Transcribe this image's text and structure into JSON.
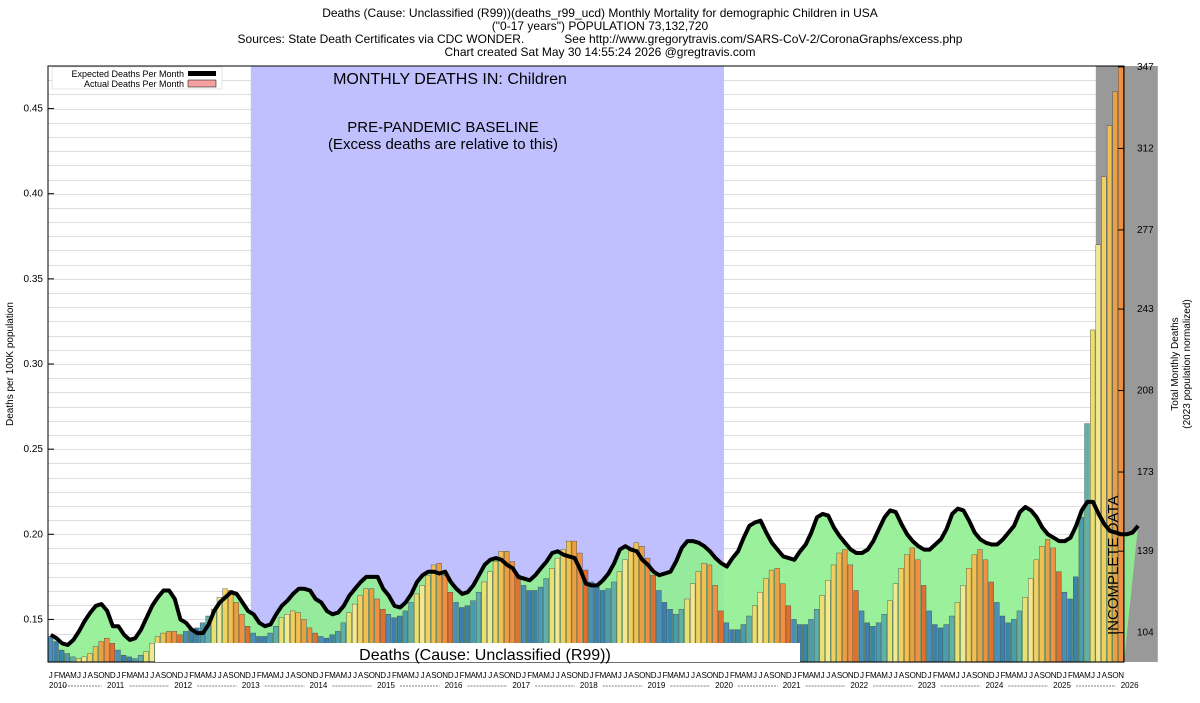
{
  "header": {
    "line1": "Deaths (Cause: Unclassified (R99))(deaths_r99_ucd) Monthly Mortality for demographic Children in USA",
    "line2": "(\"0-17 years\") POPULATION 73,132,720",
    "line3": "Sources: State Death Certificates via CDC WONDER.            See http://www.gregorytravis.com/SARS-CoV-2/CoronaGraphs/excess.php",
    "line4": "Chart created Sat May 30 14:55:24 2026 @gregtravis.com"
  },
  "annotations": {
    "monthly_title": "MONTHLY DEATHS IN: Children",
    "baseline_title": "PRE-PANDEMIC BASELINE",
    "baseline_sub": "(Excess deaths are relative to this)",
    "cause_label": "Deaths (Cause: Unclassified (R99))",
    "incomplete": "INCOMPLETE DATA"
  },
  "legend": {
    "expected": "Expected Deaths Per Month",
    "actual": "Actual Deaths Per Month",
    "placement": "top-left"
  },
  "colors": {
    "baseline_band": "#c0c0ff",
    "incomplete_band": "#999999",
    "excess_fill": "#90ee90",
    "expected_line": "#000000",
    "actual_legend": "#f4a0a0"
  },
  "chart_data": {
    "type": "bar",
    "title": "",
    "ylabel": "Deaths per 100K population",
    "y2label_1": "Total Monthly Deaths",
    "y2label_2": "(2023 population normalized)",
    "ylim": [
      0.125,
      0.475
    ],
    "y2lim": [
      91.4,
      347.4
    ],
    "yticks": [
      0.15,
      0.2,
      0.25,
      0.3,
      0.35,
      0.4,
      0.45
    ],
    "yticks_labels": [
      "0.15",
      "0.20",
      "0.25",
      "0.30",
      "0.35",
      "0.40",
      "0.45"
    ],
    "y2ticks": [
      104,
      139,
      173,
      208,
      243,
      277,
      312,
      347
    ],
    "y2ticks_labels": [
      "104",
      "139",
      "173",
      "208",
      "243",
      "277",
      "312",
      "347"
    ],
    "grid": true,
    "baseline_range": [
      "2013-01",
      "2019-12"
    ],
    "incomplete_range": [
      "2025-07",
      "2026-05"
    ],
    "month_letters": "JFMAMJJASOND",
    "years": [
      "2010",
      "2011",
      "2012",
      "2013",
      "2014",
      "2015",
      "2016",
      "2017",
      "2018",
      "2019",
      "2020",
      "2021",
      "2022",
      "2023",
      "2024",
      "2025",
      "2026"
    ],
    "expected_deaths": [
      0.141,
      0.139,
      0.136,
      0.135,
      0.138,
      0.143,
      0.149,
      0.154,
      0.158,
      0.159,
      0.155,
      0.146,
      0.146,
      0.141,
      0.138,
      0.139,
      0.144,
      0.151,
      0.158,
      0.163,
      0.167,
      0.167,
      0.162,
      0.15,
      0.148,
      0.144,
      0.142,
      0.142,
      0.147,
      0.155,
      0.16,
      0.163,
      0.166,
      0.165,
      0.16,
      0.155,
      0.153,
      0.148,
      0.146,
      0.147,
      0.153,
      0.158,
      0.161,
      0.165,
      0.168,
      0.168,
      0.167,
      0.162,
      0.16,
      0.155,
      0.153,
      0.154,
      0.158,
      0.164,
      0.168,
      0.172,
      0.175,
      0.175,
      0.175,
      0.168,
      0.164,
      0.158,
      0.157,
      0.16,
      0.165,
      0.172,
      0.176,
      0.178,
      0.178,
      0.177,
      0.178,
      0.172,
      0.168,
      0.165,
      0.166,
      0.17,
      0.176,
      0.182,
      0.185,
      0.186,
      0.185,
      0.182,
      0.18,
      0.175,
      0.174,
      0.173,
      0.176,
      0.18,
      0.184,
      0.189,
      0.19,
      0.188,
      0.187,
      0.186,
      0.179,
      0.171,
      0.17,
      0.17,
      0.173,
      0.177,
      0.183,
      0.191,
      0.193,
      0.191,
      0.19,
      0.185,
      0.182,
      0.178,
      0.176,
      0.177,
      0.178,
      0.184,
      0.192,
      0.196,
      0.196,
      0.195,
      0.193,
      0.19,
      0.186,
      0.183,
      0.181,
      0.186,
      0.19,
      0.198,
      0.205,
      0.207,
      0.208,
      0.201,
      0.195,
      0.191,
      0.187,
      0.186,
      0.185,
      0.19,
      0.194,
      0.201,
      0.21,
      0.212,
      0.211,
      0.204,
      0.199,
      0.195,
      0.191,
      0.189,
      0.189,
      0.191,
      0.196,
      0.203,
      0.21,
      0.214,
      0.213,
      0.206,
      0.2,
      0.196,
      0.193,
      0.191,
      0.191,
      0.194,
      0.197,
      0.203,
      0.212,
      0.215,
      0.214,
      0.208,
      0.201,
      0.197,
      0.195,
      0.194,
      0.194,
      0.197,
      0.201,
      0.205,
      0.213,
      0.216,
      0.214,
      0.21,
      0.204,
      0.2,
      0.198,
      0.196,
      0.196,
      0.198,
      0.205,
      0.214,
      0.219,
      0.219,
      0.212,
      0.206,
      0.202,
      0.201,
      0.2,
      0.2,
      0.201,
      0.205
    ],
    "expected_line_curve": "seasonal",
    "actual_deaths": [
      0.14,
      0.137,
      0.132,
      0.13,
      0.128,
      0.127,
      0.128,
      0.13,
      0.134,
      0.137,
      0.139,
      0.136,
      0.132,
      0.129,
      0.128,
      0.127,
      0.129,
      0.131,
      0.136,
      0.14,
      0.142,
      0.143,
      0.143,
      0.141,
      0.143,
      0.144,
      0.145,
      0.148,
      0.152,
      0.156,
      0.163,
      0.168,
      0.167,
      0.16,
      0.153,
      0.146,
      0.142,
      0.14,
      0.14,
      0.142,
      0.146,
      0.151,
      0.153,
      0.155,
      0.154,
      0.15,
      0.145,
      0.142,
      0.14,
      0.139,
      0.141,
      0.143,
      0.148,
      0.154,
      0.159,
      0.164,
      0.168,
      0.168,
      0.162,
      0.156,
      0.153,
      0.151,
      0.152,
      0.155,
      0.16,
      0.165,
      0.17,
      0.176,
      0.182,
      0.183,
      0.176,
      0.166,
      0.16,
      0.157,
      0.158,
      0.161,
      0.166,
      0.172,
      0.178,
      0.184,
      0.19,
      0.19,
      0.184,
      0.176,
      0.17,
      0.167,
      0.167,
      0.169,
      0.174,
      0.18,
      0.186,
      0.191,
      0.196,
      0.196,
      0.189,
      0.179,
      0.172,
      0.169,
      0.167,
      0.168,
      0.172,
      0.178,
      0.185,
      0.192,
      0.195,
      0.193,
      0.186,
      0.176,
      0.167,
      0.16,
      0.156,
      0.153,
      0.156,
      0.162,
      0.171,
      0.178,
      0.183,
      0.182,
      0.17,
      0.155,
      0.148,
      0.144,
      0.144,
      0.147,
      0.152,
      0.158,
      0.166,
      0.174,
      0.179,
      0.18,
      0.171,
      0.158,
      0.15,
      0.147,
      0.147,
      0.15,
      0.156,
      0.164,
      0.173,
      0.182,
      0.189,
      0.191,
      0.182,
      0.167,
      0.155,
      0.148,
      0.146,
      0.148,
      0.153,
      0.161,
      0.171,
      0.18,
      0.188,
      0.192,
      0.185,
      0.17,
      0.155,
      0.147,
      0.145,
      0.147,
      0.152,
      0.16,
      0.17,
      0.18,
      0.188,
      0.191,
      0.185,
      0.172,
      0.16,
      0.152,
      0.148,
      0.15,
      0.155,
      0.163,
      0.174,
      0.185,
      0.193,
      0.197,
      0.192,
      0.178,
      0.166,
      0.162,
      0.175,
      0.21,
      0.265,
      0.32,
      0.37,
      0.41,
      0.44,
      0.46,
      0.475
    ]
  }
}
